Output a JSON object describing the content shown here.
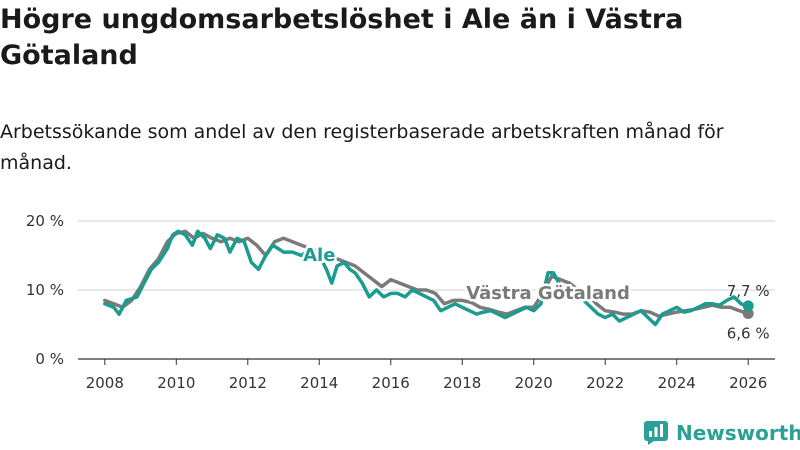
{
  "title": "Högre ungdomsarbetslöshet i Ale än i Västra Götaland",
  "subtitle": "Arbetssökande som andel av den registerbaserade arbetskraften månad för månad.",
  "logo_text": "Newsworthy",
  "chart_data": {
    "type": "line",
    "title": "Högre ungdomsarbetslöshet i Ale än i Västra Götaland",
    "xlabel": "",
    "ylabel": "",
    "xlim": [
      2007.25,
      2026.75
    ],
    "ylim": [
      0,
      20
    ],
    "yticks": [
      {
        "value": 0,
        "label": "0 %"
      },
      {
        "value": 10,
        "label": "10 %"
      },
      {
        "value": 20,
        "label": "20 %"
      }
    ],
    "xticks": [
      2008,
      2010,
      2012,
      2014,
      2016,
      2018,
      2020,
      2022,
      2024,
      2026
    ],
    "grid": true,
    "series": [
      {
        "name": "Västra Götaland",
        "color": "#7a7a7a",
        "end_label": "6,6 %",
        "points": [
          [
            2008.0,
            8.5
          ],
          [
            2008.25,
            8.0
          ],
          [
            2008.5,
            7.5
          ],
          [
            2008.75,
            8.5
          ],
          [
            2009.0,
            10.5
          ],
          [
            2009.25,
            13.0
          ],
          [
            2009.5,
            14.5
          ],
          [
            2009.75,
            17.0
          ],
          [
            2010.0,
            18.2
          ],
          [
            2010.25,
            18.5
          ],
          [
            2010.5,
            17.5
          ],
          [
            2010.75,
            18.2
          ],
          [
            2011.0,
            17.5
          ],
          [
            2011.25,
            17.0
          ],
          [
            2011.5,
            17.5
          ],
          [
            2011.75,
            17.0
          ],
          [
            2012.0,
            17.5
          ],
          [
            2012.25,
            16.5
          ],
          [
            2012.5,
            15.0
          ],
          [
            2012.75,
            17.0
          ],
          [
            2013.0,
            17.5
          ],
          [
            2013.25,
            17.0
          ],
          [
            2013.5,
            16.5
          ],
          [
            2013.75,
            16.0
          ],
          [
            2014.0,
            15.5
          ],
          [
            2014.25,
            15.0
          ],
          [
            2014.5,
            14.5
          ],
          [
            2014.75,
            14.0
          ],
          [
            2015.0,
            13.5
          ],
          [
            2015.25,
            12.5
          ],
          [
            2015.5,
            11.5
          ],
          [
            2015.75,
            10.5
          ],
          [
            2016.0,
            11.5
          ],
          [
            2016.25,
            11.0
          ],
          [
            2016.5,
            10.5
          ],
          [
            2016.75,
            10.0
          ],
          [
            2017.0,
            10.0
          ],
          [
            2017.25,
            9.5
          ],
          [
            2017.5,
            8.0
          ],
          [
            2017.75,
            8.5
          ],
          [
            2018.0,
            8.5
          ],
          [
            2018.25,
            8.2
          ],
          [
            2018.5,
            7.5
          ],
          [
            2018.75,
            7.2
          ],
          [
            2019.0,
            6.8
          ],
          [
            2019.25,
            6.5
          ],
          [
            2019.5,
            7.0
          ],
          [
            2019.75,
            7.5
          ],
          [
            2020.0,
            7.5
          ],
          [
            2020.25,
            9.5
          ],
          [
            2020.5,
            12.0
          ],
          [
            2020.75,
            11.5
          ],
          [
            2021.0,
            11.0
          ],
          [
            2021.25,
            10.0
          ],
          [
            2021.5,
            9.5
          ],
          [
            2021.75,
            8.0
          ],
          [
            2022.0,
            7.0
          ],
          [
            2022.25,
            6.8
          ],
          [
            2022.5,
            6.5
          ],
          [
            2022.75,
            6.5
          ],
          [
            2023.0,
            7.0
          ],
          [
            2023.25,
            6.8
          ],
          [
            2023.5,
            6.2
          ],
          [
            2023.75,
            6.5
          ],
          [
            2024.0,
            6.8
          ],
          [
            2024.25,
            7.0
          ],
          [
            2024.5,
            7.2
          ],
          [
            2024.75,
            7.5
          ],
          [
            2025.0,
            7.8
          ],
          [
            2025.25,
            7.5
          ],
          [
            2025.5,
            7.5
          ],
          [
            2025.75,
            7.0
          ],
          [
            2026.0,
            6.6
          ]
        ]
      },
      {
        "name": "Ale",
        "color": "#1a9c8f",
        "end_label": "7,7 %",
        "points": [
          [
            2008.0,
            8.0
          ],
          [
            2008.25,
            7.5
          ],
          [
            2008.4,
            6.5
          ],
          [
            2008.6,
            8.5
          ],
          [
            2008.9,
            9.0
          ],
          [
            2009.1,
            11.0
          ],
          [
            2009.3,
            13.0
          ],
          [
            2009.5,
            14.0
          ],
          [
            2009.75,
            16.0
          ],
          [
            2009.9,
            18.0
          ],
          [
            2010.05,
            18.5
          ],
          [
            2010.25,
            18.0
          ],
          [
            2010.45,
            16.5
          ],
          [
            2010.6,
            18.5
          ],
          [
            2010.8,
            17.5
          ],
          [
            2010.95,
            16.0
          ],
          [
            2011.15,
            18.0
          ],
          [
            2011.35,
            17.5
          ],
          [
            2011.5,
            15.5
          ],
          [
            2011.7,
            17.5
          ],
          [
            2011.9,
            17.0
          ],
          [
            2012.1,
            14.0
          ],
          [
            2012.3,
            13.0
          ],
          [
            2012.5,
            15.0
          ],
          [
            2012.7,
            16.5
          ],
          [
            2012.85,
            16.0
          ],
          [
            2013.0,
            15.5
          ],
          [
            2013.25,
            15.5
          ],
          [
            2013.5,
            15.0
          ],
          [
            2013.75,
            16.0
          ],
          [
            2014.0,
            15.0
          ],
          [
            2014.2,
            13.0
          ],
          [
            2014.35,
            11.0
          ],
          [
            2014.5,
            13.5
          ],
          [
            2014.7,
            14.0
          ],
          [
            2014.85,
            13.0
          ],
          [
            2015.0,
            12.5
          ],
          [
            2015.2,
            11.0
          ],
          [
            2015.4,
            9.0
          ],
          [
            2015.6,
            10.0
          ],
          [
            2015.8,
            9.0
          ],
          [
            2016.0,
            9.5
          ],
          [
            2016.2,
            9.5
          ],
          [
            2016.4,
            9.0
          ],
          [
            2016.6,
            10.0
          ],
          [
            2016.8,
            9.5
          ],
          [
            2017.0,
            9.0
          ],
          [
            2017.2,
            8.5
          ],
          [
            2017.4,
            7.0
          ],
          [
            2017.6,
            7.5
          ],
          [
            2017.8,
            8.0
          ],
          [
            2018.0,
            7.5
          ],
          [
            2018.2,
            7.0
          ],
          [
            2018.4,
            6.5
          ],
          [
            2018.6,
            6.8
          ],
          [
            2018.8,
            7.0
          ],
          [
            2019.0,
            6.5
          ],
          [
            2019.2,
            6.0
          ],
          [
            2019.4,
            6.5
          ],
          [
            2019.6,
            7.0
          ],
          [
            2019.8,
            7.5
          ],
          [
            2020.0,
            7.0
          ],
          [
            2020.2,
            8.0
          ],
          [
            2020.4,
            12.5
          ],
          [
            2020.55,
            12.5
          ],
          [
            2020.7,
            11.0
          ],
          [
            2020.85,
            10.5
          ],
          [
            2021.0,
            10.0
          ],
          [
            2021.2,
            9.5
          ],
          [
            2021.4,
            8.5
          ],
          [
            2021.6,
            7.5
          ],
          [
            2021.8,
            6.5
          ],
          [
            2022.0,
            6.0
          ],
          [
            2022.2,
            6.5
          ],
          [
            2022.4,
            5.5
          ],
          [
            2022.6,
            6.0
          ],
          [
            2022.8,
            6.5
          ],
          [
            2023.0,
            7.0
          ],
          [
            2023.2,
            6.0
          ],
          [
            2023.4,
            5.0
          ],
          [
            2023.6,
            6.5
          ],
          [
            2023.8,
            7.0
          ],
          [
            2024.0,
            7.5
          ],
          [
            2024.2,
            6.8
          ],
          [
            2024.4,
            7.0
          ],
          [
            2024.6,
            7.5
          ],
          [
            2024.8,
            8.0
          ],
          [
            2025.0,
            8.0
          ],
          [
            2025.2,
            7.8
          ],
          [
            2025.4,
            8.5
          ],
          [
            2025.6,
            9.0
          ],
          [
            2025.8,
            8.0
          ],
          [
            2026.0,
            7.7
          ]
        ]
      }
    ],
    "annotations": [
      {
        "text": "Ale",
        "series": "Ale",
        "at": [
          2014.0,
          14.2
        ]
      },
      {
        "text": "Västra Götaland",
        "series": "Västra Götaland",
        "at": [
          2020.4,
          8.7
        ]
      }
    ]
  }
}
